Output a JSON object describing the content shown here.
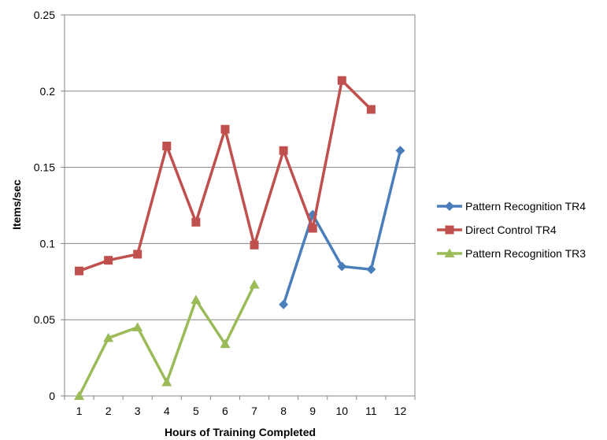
{
  "chart_data": {
    "type": "line",
    "xlabel": "Hours of Training Completed",
    "ylabel": "Items/sec",
    "ylim": [
      0,
      0.25
    ],
    "yticks": [
      "0",
      "0.05",
      "0.1",
      "0.15",
      "0.2",
      "0.25"
    ],
    "ytick_values": [
      0,
      0.05,
      0.1,
      0.15,
      0.2,
      0.25
    ],
    "categories": [
      "1",
      "2",
      "3",
      "4",
      "5",
      "6",
      "7",
      "8",
      "9",
      "10",
      "11",
      "12"
    ],
    "grid": "horizontal",
    "legend_position": "right",
    "series": [
      {
        "name": "Pattern Recognition TR4",
        "color": "#4a7ebb",
        "marker": "diamond",
        "x": [
          8,
          9,
          10,
          11,
          12
        ],
        "y": [
          0.06,
          0.119,
          0.085,
          0.083,
          0.161
        ]
      },
      {
        "name": "Direct Control TR4",
        "color": "#c0504d",
        "marker": "square",
        "x": [
          1,
          2,
          3,
          4,
          5,
          6,
          7,
          8,
          9,
          10,
          11
        ],
        "y": [
          0.082,
          0.089,
          0.093,
          0.164,
          0.114,
          0.175,
          0.099,
          0.161,
          0.11,
          0.207,
          0.188
        ]
      },
      {
        "name": "Pattern Recognition TR3",
        "color": "#9bbb59",
        "marker": "triangle",
        "x": [
          1,
          2,
          3,
          4,
          5,
          6,
          7
        ],
        "y": [
          0.0,
          0.038,
          0.045,
          0.009,
          0.063,
          0.034,
          0.073
        ]
      }
    ]
  }
}
